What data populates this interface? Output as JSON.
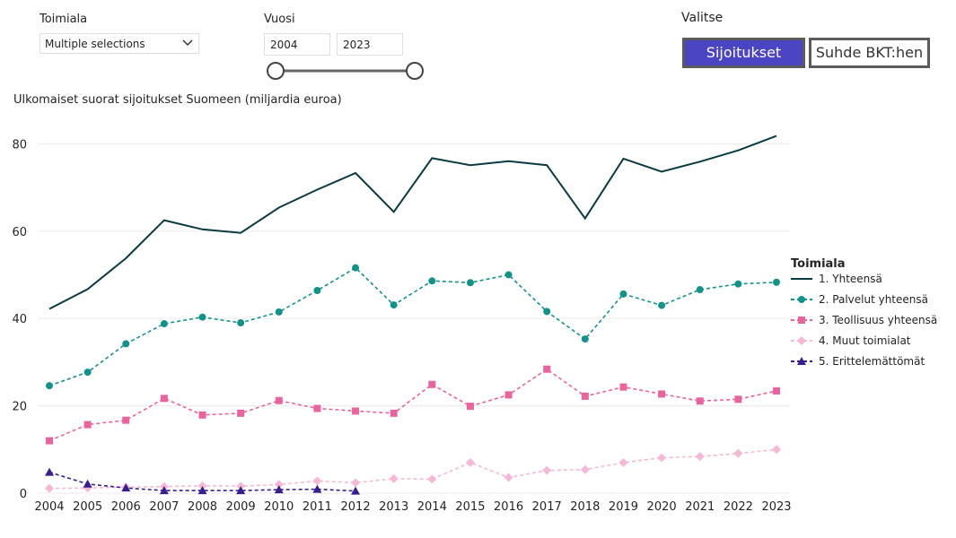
{
  "filters": {
    "industry": {
      "label": "Toimiala",
      "selected": "Multiple selections"
    },
    "year": {
      "label": "Vuosi",
      "from": "2004",
      "to": "2023"
    }
  },
  "selector": {
    "label": "Valitse",
    "buttons": [
      {
        "label": "Sijoitukset",
        "active": true
      },
      {
        "label": "Suhde BKT:hen",
        "active": false
      }
    ]
  },
  "chart_data": {
    "type": "line",
    "title": "Ulkomaiset suorat sijoitukset Suomeen (miljardia euroa)",
    "xlabel": "",
    "ylabel": "",
    "x": [
      "2004",
      "2005",
      "2006",
      "2007",
      "2008",
      "2009",
      "2010",
      "2011",
      "2012",
      "2013",
      "2014",
      "2015",
      "2016",
      "2017",
      "2018",
      "2019",
      "2020",
      "2021",
      "2022",
      "2023"
    ],
    "ylim": [
      0,
      85
    ],
    "yticks": [
      0,
      20,
      40,
      60,
      80
    ],
    "grid": true,
    "legend": {
      "title": "Toimiala",
      "position": "right"
    },
    "series": [
      {
        "name": "1. Yhteensä",
        "color": "#0b3b41",
        "dash": "solid",
        "marker": "none",
        "values": [
          42.2,
          46.7,
          53.8,
          62.5,
          60.4,
          59.6,
          65.4,
          69.5,
          73.3,
          64.4,
          76.7,
          75.1,
          76.0,
          75.1,
          62.9,
          76.6,
          73.6,
          75.9,
          78.5,
          81.8
        ]
      },
      {
        "name": "2. Palvelut yhteensä",
        "color": "#14928a",
        "dash": "dashed",
        "marker": "circle",
        "values": [
          24.6,
          27.7,
          34.2,
          38.8,
          40.3,
          39.0,
          41.5,
          46.4,
          51.6,
          43.1,
          48.6,
          48.2,
          50.0,
          41.6,
          35.3,
          45.6,
          43.0,
          46.6,
          47.9,
          48.3
        ]
      },
      {
        "name": "3. Teollisuus yhteensä",
        "color": "#e8649e",
        "dash": "dashed",
        "marker": "square",
        "values": [
          12.0,
          15.7,
          16.7,
          21.7,
          17.9,
          18.3,
          21.2,
          19.4,
          18.8,
          18.3,
          24.9,
          19.9,
          22.5,
          28.4,
          22.2,
          24.3,
          22.7,
          21.1,
          21.5,
          23.4
        ]
      },
      {
        "name": "4. Muut toimialat",
        "color": "#f6b8d7",
        "dash": "dashed",
        "marker": "diamond",
        "values": [
          1.1,
          1.2,
          1.4,
          1.5,
          1.7,
          1.6,
          2.0,
          2.8,
          2.4,
          3.3,
          3.2,
          7.0,
          3.6,
          5.2,
          5.4,
          7.0,
          8.1,
          8.4,
          9.1,
          10.0
        ]
      },
      {
        "name": "5. Erittelemättömät",
        "color": "#3a1f8c",
        "dash": "dashed",
        "marker": "triangle",
        "values": [
          4.8,
          2.1,
          1.2,
          0.6,
          0.6,
          0.6,
          0.8,
          0.9,
          0.5,
          null,
          null,
          null,
          null,
          null,
          null,
          null,
          null,
          null,
          null,
          null
        ]
      }
    ]
  }
}
